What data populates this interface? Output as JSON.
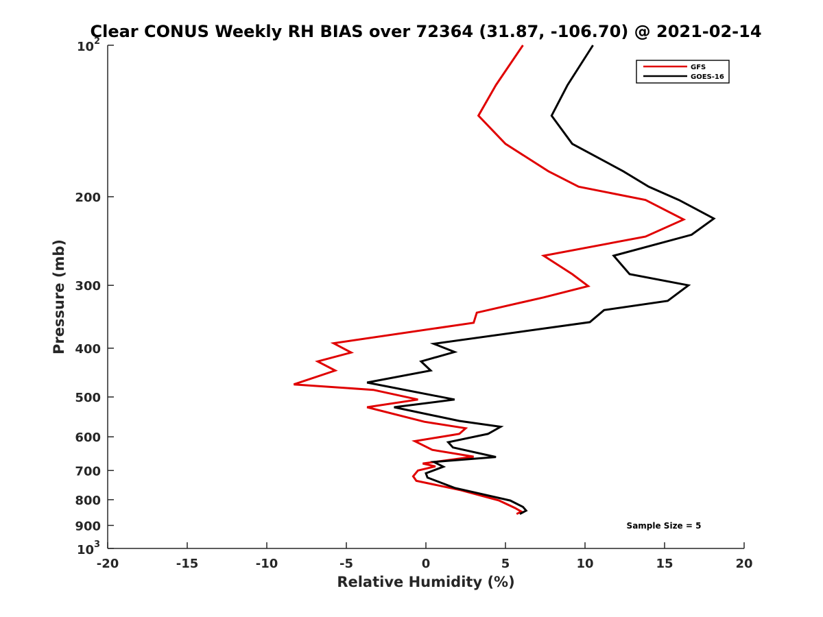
{
  "chart_data": {
    "type": "line",
    "title": "Clear CONUS Weekly RH BIAS over 72364 (31.87, -106.70) @ 2021-02-14",
    "xlabel": "Relative Humidity (%)",
    "ylabel": "Pressure (mb)",
    "xlim": [
      -20,
      20
    ],
    "ylim": [
      100,
      1000
    ],
    "y_scale": "log",
    "y_reversed": true,
    "x_ticks": [
      {
        "value": -20,
        "label": "-20"
      },
      {
        "value": -15,
        "label": "-15"
      },
      {
        "value": -10,
        "label": "-10"
      },
      {
        "value": -5,
        "label": "-5"
      },
      {
        "value": 0,
        "label": "0"
      },
      {
        "value": 5,
        "label": "5"
      },
      {
        "value": 10,
        "label": "10"
      },
      {
        "value": 15,
        "label": "15"
      },
      {
        "value": 20,
        "label": "20"
      }
    ],
    "y_ticks": [
      {
        "value": 100,
        "base": "10",
        "exp": "2"
      },
      {
        "value": 200,
        "base": "200",
        "exp": ""
      },
      {
        "value": 300,
        "base": "300",
        "exp": ""
      },
      {
        "value": 400,
        "base": "400",
        "exp": ""
      },
      {
        "value": 500,
        "base": "500",
        "exp": ""
      },
      {
        "value": 600,
        "base": "600",
        "exp": ""
      },
      {
        "value": 700,
        "base": "700",
        "exp": ""
      },
      {
        "value": 800,
        "base": "800",
        "exp": ""
      },
      {
        "value": 900,
        "base": "900",
        "exp": ""
      },
      {
        "value": 1000,
        "base": "10",
        "exp": "3"
      }
    ],
    "legend_position": "top-right",
    "grid": false,
    "annotation": "Sample Size = 5",
    "series": [
      {
        "name": "GFS",
        "color": "#e00000",
        "points": [
          [
            6.1,
            100
          ],
          [
            4.4,
            120
          ],
          [
            3.3,
            138
          ],
          [
            5.0,
            157
          ],
          [
            7.7,
            178
          ],
          [
            9.6,
            191
          ],
          [
            13.8,
            203
          ],
          [
            16.2,
            222
          ],
          [
            13.8,
            240
          ],
          [
            7.4,
            262
          ],
          [
            9.2,
            285
          ],
          [
            10.2,
            301
          ],
          [
            7.4,
            317
          ],
          [
            3.2,
            340
          ],
          [
            3.0,
            356
          ],
          [
            -5.8,
            391
          ],
          [
            -4.7,
            408
          ],
          [
            -6.8,
            425
          ],
          [
            -5.7,
            443
          ],
          [
            -8.3,
            472
          ],
          [
            -3.3,
            484
          ],
          [
            -0.5,
            506
          ],
          [
            -3.7,
            524
          ],
          [
            -0.1,
            560
          ],
          [
            2.5,
            577
          ],
          [
            2.1,
            592
          ],
          [
            -0.7,
            612
          ],
          [
            0.4,
            637
          ],
          [
            3.0,
            657
          ],
          [
            -0.2,
            678
          ],
          [
            0.6,
            687
          ],
          [
            -0.5,
            700
          ],
          [
            -0.8,
            719
          ],
          [
            -0.6,
            734
          ],
          [
            2.2,
            766
          ],
          [
            4.6,
            803
          ],
          [
            5.6,
            831
          ],
          [
            6.0,
            845
          ],
          [
            5.7,
            854
          ]
        ]
      },
      {
        "name": "GOES-16",
        "color": "#000000",
        "points": [
          [
            10.5,
            100
          ],
          [
            8.9,
            120
          ],
          [
            7.9,
            138
          ],
          [
            9.2,
            157
          ],
          [
            12.4,
            178
          ],
          [
            14.0,
            191
          ],
          [
            15.9,
            203
          ],
          [
            18.1,
            221
          ],
          [
            16.7,
            238
          ],
          [
            11.8,
            262
          ],
          [
            12.8,
            285
          ],
          [
            16.5,
            300
          ],
          [
            15.2,
            322
          ],
          [
            11.2,
            336
          ],
          [
            10.3,
            355
          ],
          [
            0.5,
            392
          ],
          [
            1.8,
            407
          ],
          [
            -0.3,
            425
          ],
          [
            0.3,
            443
          ],
          [
            -3.7,
            468
          ],
          [
            1.8,
            506
          ],
          [
            -2.0,
            524
          ],
          [
            2.1,
            558
          ],
          [
            4.7,
            573
          ],
          [
            3.9,
            592
          ],
          [
            1.4,
            615
          ],
          [
            1.7,
            630
          ],
          [
            4.4,
            658
          ],
          [
            0.5,
            673
          ],
          [
            1.1,
            688
          ],
          [
            0.0,
            709
          ],
          [
            0.1,
            723
          ],
          [
            1.8,
            758
          ],
          [
            5.3,
            803
          ],
          [
            6.1,
            827
          ],
          [
            6.3,
            841
          ],
          [
            5.9,
            854
          ]
        ]
      }
    ]
  }
}
